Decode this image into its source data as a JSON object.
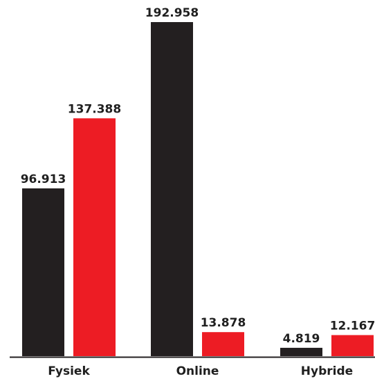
{
  "chart_data": {
    "type": "bar",
    "categories": [
      "Fysiek",
      "Online",
      "Hybride"
    ],
    "series": [
      {
        "color": "#231f20",
        "values": [
          96913,
          192958,
          4819
        ],
        "labels": [
          "96.913",
          "192.958",
          "4.819"
        ]
      },
      {
        "color": "#ed1c24",
        "values": [
          137388,
          13878,
          12167
        ],
        "labels": [
          "137.388",
          "13.878",
          "12.167"
        ]
      }
    ],
    "title": "",
    "xlabel": "",
    "ylabel": "",
    "ylim": [
      0,
      192958
    ],
    "grid": false,
    "legend": "none"
  }
}
